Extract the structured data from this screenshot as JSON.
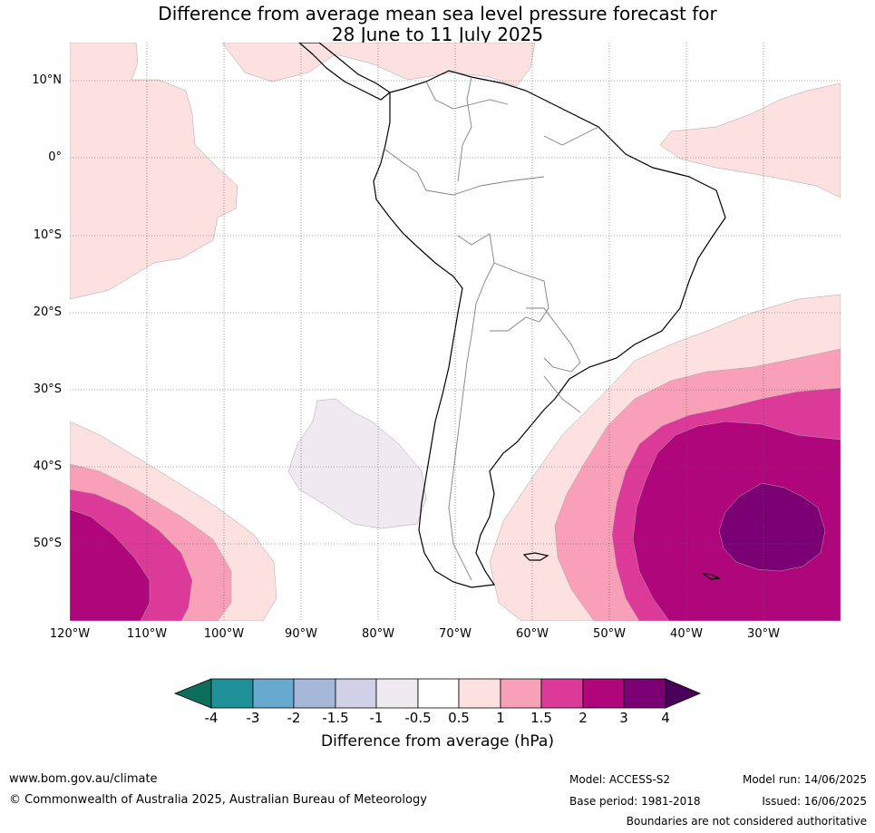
{
  "title": {
    "line1": "Difference from average mean sea level pressure forecast for",
    "line2": "28 June to 11 July 2025"
  },
  "map": {
    "lat_labels": [
      "10°N",
      "0°",
      "10°S",
      "20°S",
      "30°S",
      "40°S",
      "50°S"
    ],
    "lon_labels": [
      "120°W",
      "110°W",
      "100°W",
      "90°W",
      "80°W",
      "70°W",
      "60°W",
      "50°W",
      "40°W",
      "30°W"
    ],
    "colors": {
      "ocean": "#ffffff",
      "land": "#ffffff",
      "coast": "#000000",
      "borders": "#808080",
      "grid": "#555555"
    }
  },
  "colorbar": {
    "title": "Difference from average (hPa)",
    "tick_labels": [
      "-4",
      "-3",
      "-2",
      "-1.5",
      "-1",
      "-0.5",
      "0.5",
      "1",
      "1.5",
      "2",
      "3",
      "4"
    ],
    "colors": [
      "#0d6e5c",
      "#1f9199",
      "#68a9d0",
      "#a6b8da",
      "#d0d0e6",
      "#efe9f0",
      "#ffffff",
      "#fde0e0",
      "#f8a0b8",
      "#dc3a98",
      "#b0067c",
      "#7a0074",
      "#4a005a"
    ]
  },
  "footer": {
    "url": "www.bom.gov.au/climate",
    "copyright": "© Commonwealth of Australia 2025, Australian Bureau of Meteorology",
    "model": "Model: ACCESS-S2",
    "base_period": "Base period: 1981-2018",
    "model_run": "Model run: 14/06/2025",
    "issued": "Issued: 16/06/2025",
    "disclaimer": "Boundaries are not considered authoritative"
  }
}
